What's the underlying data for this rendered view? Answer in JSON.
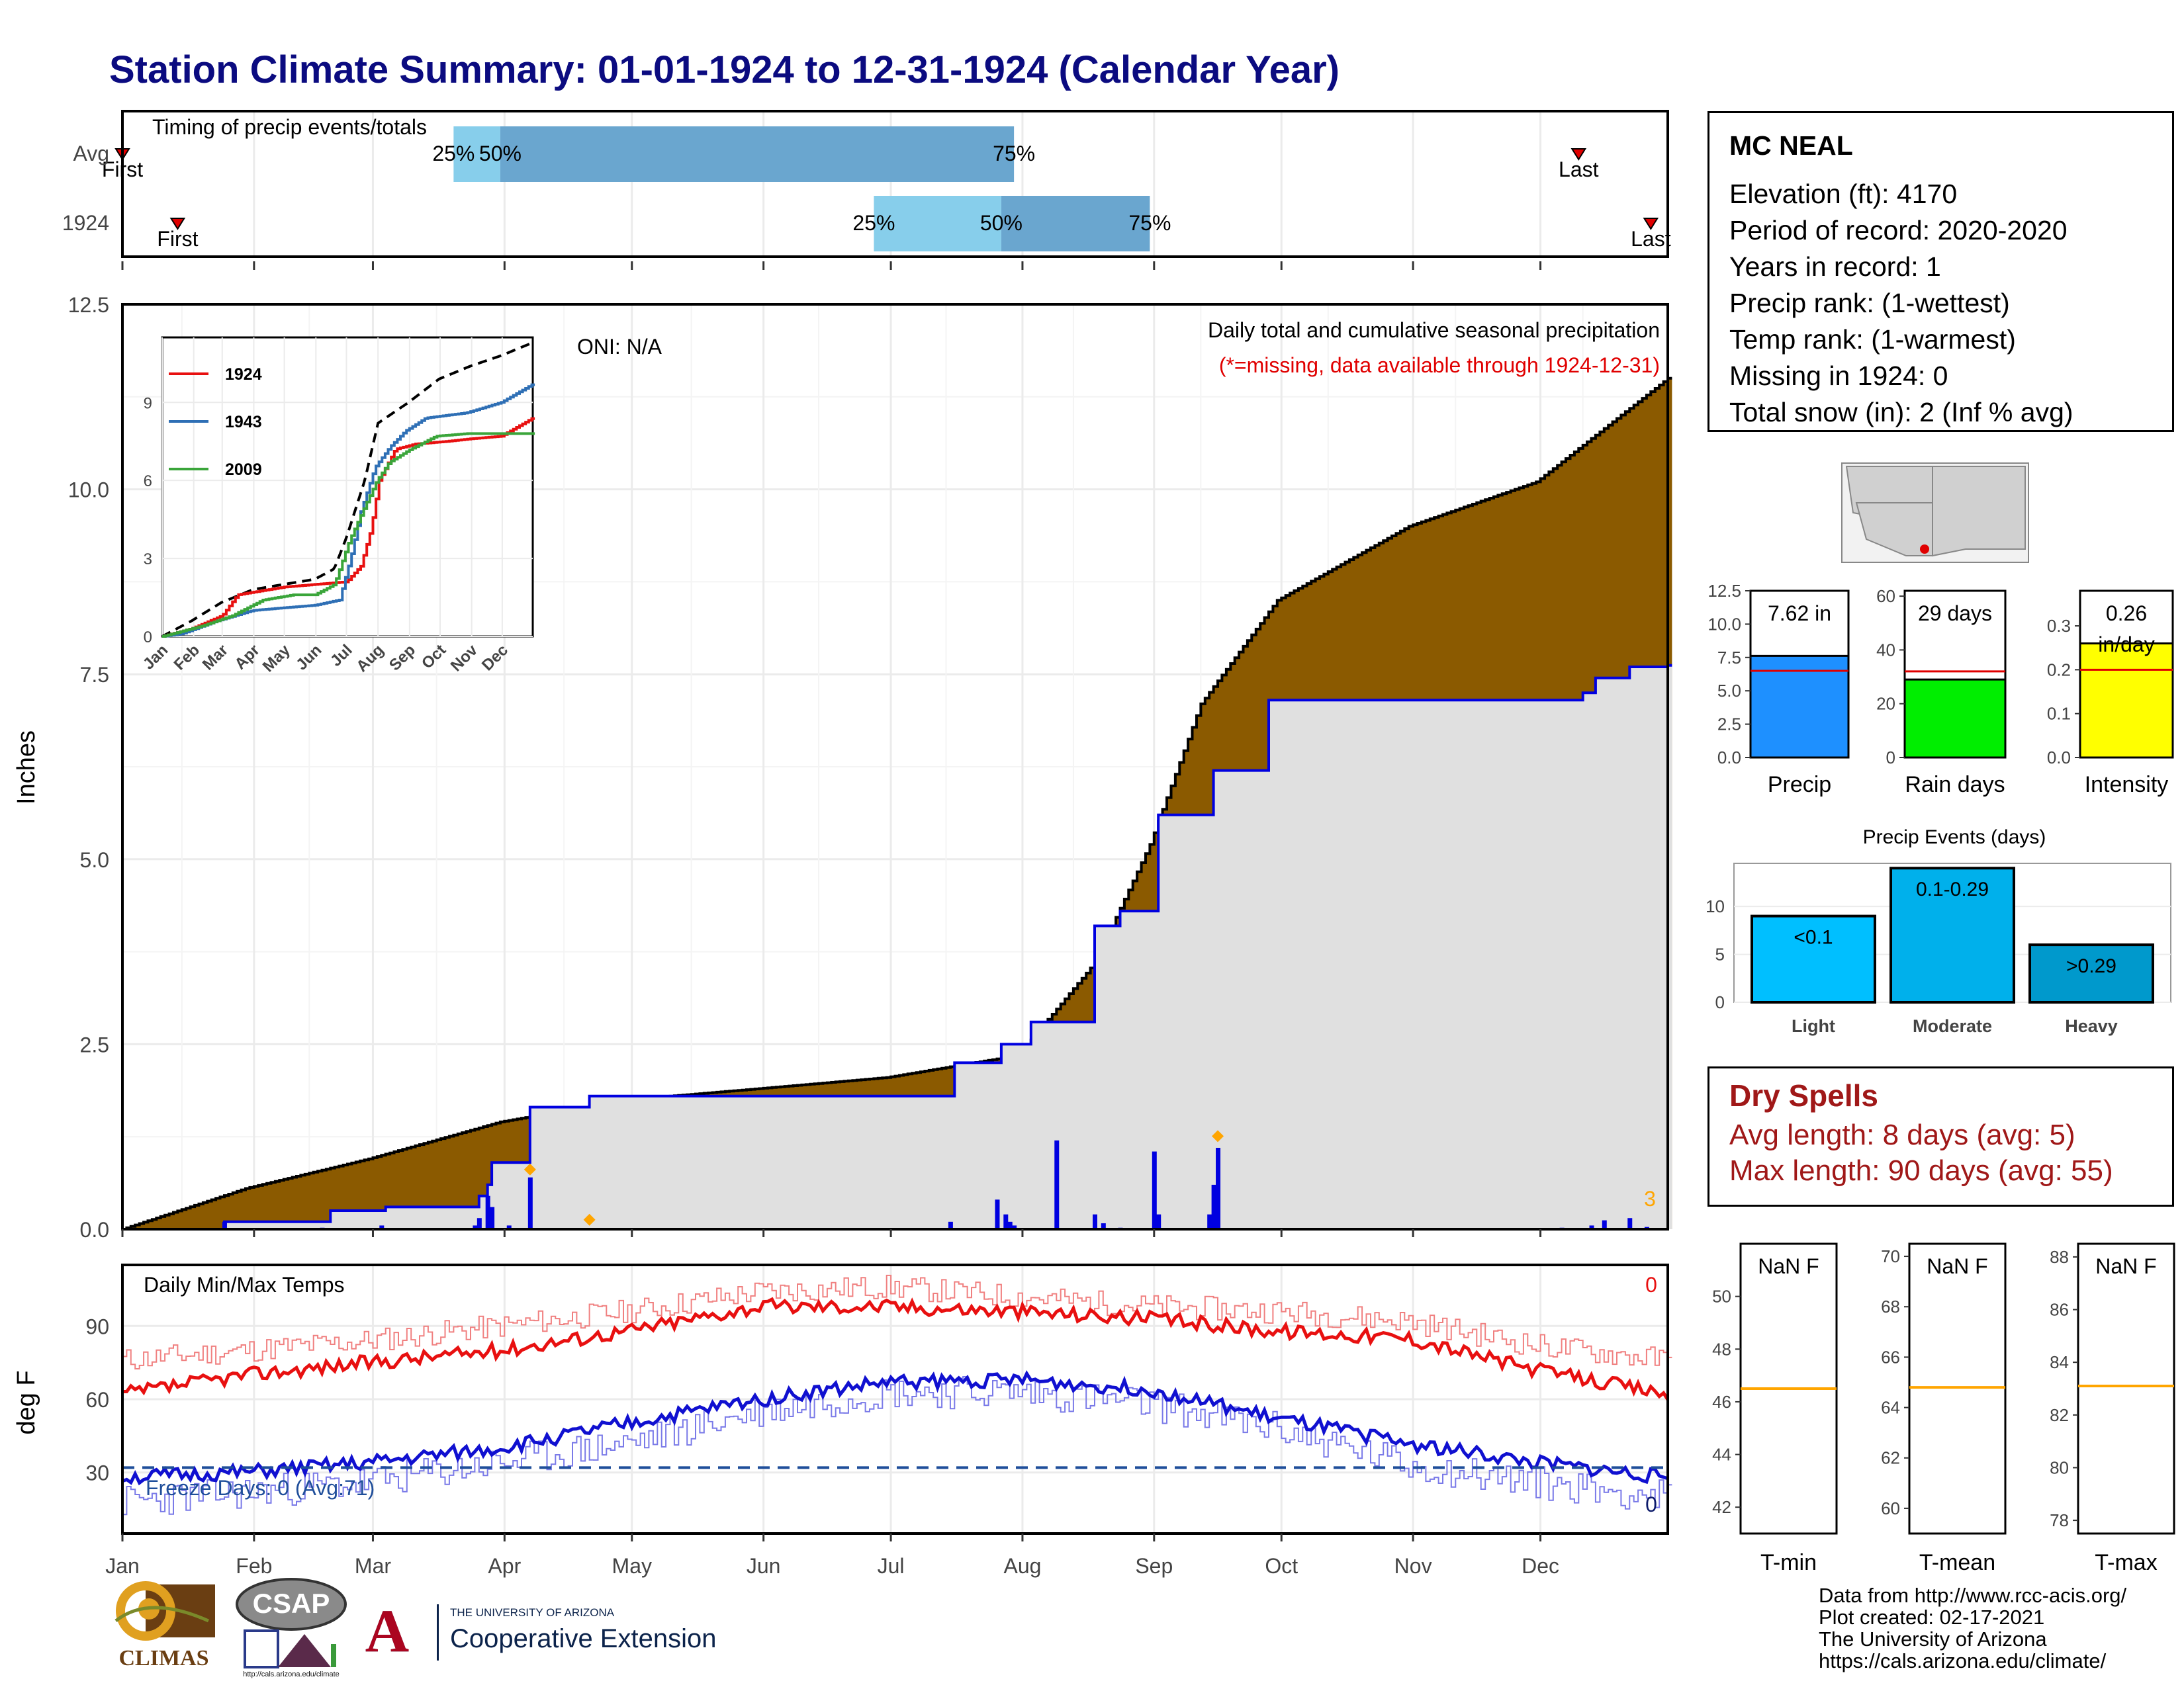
{
  "title": "Station Climate Summary: 01-01-1924 to 12-31-1924 (Calendar Year)",
  "colors": {
    "title": "#0b0b80",
    "precip_fill": "#8b5a00",
    "current_line": "#0000e0",
    "avg_area": "#e0e0e0",
    "tmax": "#e81010",
    "tmin": "#1010d0",
    "dry": "#a01818",
    "freeze": "#1f4e9a",
    "highlight": "#ffa500"
  },
  "station": {
    "name": "MC NEAL",
    "lines": [
      "Elevation (ft): 4170",
      "Period of record: 2020-2020",
      "Years in record: 1",
      "Precip rank:  (1-wettest)",
      "Temp rank:  (1-warmest)",
      "Missing in 1924: 0",
      "Total snow (in): 2 (Inf % avg)"
    ]
  },
  "dry_spells": {
    "title": "Dry Spells",
    "avg": "Avg length: 8 days (avg: 5)",
    "max": "Max length: 90 days (avg: 55)"
  },
  "credits": [
    "Data from http://www.rcc-acis.org/",
    "Plot created: 02-17-2021",
    "The University of Arizona",
    "https://cals.arizona.edu/climate/"
  ],
  "logos": {
    "climas": "CLIMAS",
    "csap": "CSAP",
    "csap_url": "http://cals.arizona.edu/climate",
    "ua_top": "THE UNIVERSITY OF ARIZONA",
    "ua_main": "Cooperative Extension",
    "ua_letter": "A"
  },
  "chart_data": [
    {
      "type": "bar",
      "name": "timing",
      "title": "Timing of precip events/totals",
      "categories": [
        "Avg",
        "1924"
      ],
      "rows": [
        {
          "label": "Avg",
          "q25": "Mar 20",
          "q50": "Mar 31",
          "q75": "Jul 30",
          "first": "Jan 1",
          "last": "Dec 10",
          "first_label": "First",
          "last_label": "Last",
          "pct_labels": [
            "25%",
            "50%",
            "75%"
          ]
        },
        {
          "label": "1924",
          "q25": "Jun 27",
          "q50": "Jul 27",
          "q75": "Aug 31",
          "first": "Jan 14",
          "last": "Dec 27",
          "first_label": "First",
          "last_label": "Last",
          "pct_labels": [
            "25%",
            "50%",
            "75%"
          ]
        }
      ]
    },
    {
      "type": "area",
      "name": "cumulative-precip",
      "title": "Daily total and cumulative seasonal precipitation",
      "subtitle": "(*=missing, data available through 1924-12-31)",
      "annotation": "ONI: N/A",
      "ylabel": "Inches",
      "ylim": [
        0,
        12.5
      ],
      "yticks": [
        "0.0",
        "2.5",
        "5.0",
        "7.5",
        "10.0",
        "12.5"
      ],
      "xticks": [
        "Jan",
        "Feb",
        "Mar",
        "Apr",
        "May",
        "Jun",
        "Jul",
        "Aug",
        "Sep",
        "Oct",
        "Nov",
        "Dec"
      ],
      "avg_cumulative": [
        [
          1,
          0
        ],
        [
          30,
          0.55
        ],
        [
          59,
          0.95
        ],
        [
          90,
          1.45
        ],
        [
          120,
          1.75
        ],
        [
          151,
          1.9
        ],
        [
          181,
          2.05
        ],
        [
          212,
          2.35
        ],
        [
          230,
          3.6
        ],
        [
          243,
          5.2
        ],
        [
          255,
          7.1
        ],
        [
          273,
          8.5
        ],
        [
          304,
          9.5
        ],
        [
          334,
          10.1
        ],
        [
          365,
          11.5
        ]
      ],
      "current_cumulative": [
        [
          1,
          0
        ],
        [
          25,
          0.1
        ],
        [
          48,
          0.1
        ],
        [
          50,
          0.25
        ],
        [
          62,
          0.25
        ],
        [
          63,
          0.3
        ],
        [
          84,
          0.3
        ],
        [
          85,
          0.45
        ],
        [
          87,
          0.6
        ],
        [
          88,
          0.9
        ],
        [
          96,
          0.9
        ],
        [
          97,
          1.65
        ],
        [
          110,
          1.65
        ],
        [
          111,
          1.8
        ],
        [
          196,
          1.8
        ],
        [
          197,
          2.25
        ],
        [
          207,
          2.25
        ],
        [
          208,
          2.5
        ],
        [
          214,
          2.5
        ],
        [
          215,
          2.8
        ],
        [
          229,
          2.8
        ],
        [
          230,
          4.1
        ],
        [
          235,
          4.1
        ],
        [
          236,
          4.3
        ],
        [
          244,
          4.3
        ],
        [
          245,
          5.6
        ],
        [
          257,
          5.6
        ],
        [
          258,
          6.2
        ],
        [
          270,
          6.2
        ],
        [
          271,
          6.2
        ],
        [
          271,
          7.15
        ],
        [
          340,
          7.15
        ],
        [
          345,
          7.25
        ],
        [
          348,
          7.45
        ],
        [
          355,
          7.45
        ],
        [
          356,
          7.6
        ],
        [
          365,
          7.62
        ]
      ],
      "daily_bars": [
        [
          25,
          0.1
        ],
        [
          48,
          0.02
        ],
        [
          62,
          0.05
        ],
        [
          84,
          0.05
        ],
        [
          85,
          0.15
        ],
        [
          87,
          0.45
        ],
        [
          88,
          0.3
        ],
        [
          92,
          0.05
        ],
        [
          97,
          0.7
        ],
        [
          196,
          0.1
        ],
        [
          207,
          0.4
        ],
        [
          209,
          0.2
        ],
        [
          210,
          0.1
        ],
        [
          211,
          0.05
        ],
        [
          221,
          1.2
        ],
        [
          230,
          0.2
        ],
        [
          232,
          0.08
        ],
        [
          236,
          0.02
        ],
        [
          244,
          1.05
        ],
        [
          245,
          0.2
        ],
        [
          257,
          0.2
        ],
        [
          258,
          0.6
        ],
        [
          259,
          1.1
        ],
        [
          340,
          0.02
        ],
        [
          347,
          0.05
        ],
        [
          350,
          0.12
        ],
        [
          356,
          0.15
        ],
        [
          360,
          0.03
        ]
      ],
      "highlight_markers": [
        [
          97,
          0.7
        ],
        [
          111,
          0.02
        ],
        [
          259,
          1.15
        ]
      ],
      "missing_count": "3"
    },
    {
      "type": "line",
      "name": "inset-cumulative",
      "series": [
        {
          "name": "1924",
          "color": "#e81010"
        },
        {
          "name": "1943",
          "color": "#2e6fb5"
        },
        {
          "name": "2009",
          "color": "#3aa53a"
        }
      ],
      "yticks": [
        "0",
        "3",
        "6",
        "9"
      ],
      "xticks": [
        "Jan",
        "Feb",
        "Mar",
        "Apr",
        "May",
        "Jun",
        "Jul",
        "Aug",
        "Sep",
        "Oct",
        "Nov",
        "Dec"
      ],
      "ylim": [
        0,
        11.5
      ]
    },
    {
      "type": "bar",
      "name": "precip-summary",
      "panels": [
        {
          "label": "Precip",
          "value": 7.62,
          "avg": 6.5,
          "ylim": [
            0,
            12.5
          ],
          "yticks": [
            "0.0",
            "2.5",
            "5.0",
            "7.5",
            "10.0",
            "12.5"
          ],
          "value_label": "7.62 in",
          "color": "#1e90ff"
        },
        {
          "label": "Rain days",
          "value": 29,
          "avg": 32,
          "ylim": [
            0,
            62
          ],
          "yticks": [
            "0",
            "20",
            "40",
            "60"
          ],
          "value_label": "29 days",
          "color": "#00ee00"
        },
        {
          "label": "Intensity",
          "value": 0.26,
          "avg": 0.2,
          "ylim": [
            0,
            0.38
          ],
          "yticks": [
            "0.0",
            "0.1",
            "0.2",
            "0.3"
          ],
          "value_label": "0.26 in/day",
          "color": "#ffff00"
        }
      ]
    },
    {
      "type": "bar",
      "name": "precip-events",
      "title": "Precip Events (days)",
      "categories": [
        "Light",
        "Moderate",
        "Heavy"
      ],
      "values": [
        9,
        14,
        6
      ],
      "bar_labels": [
        "<0.1",
        "0.1-0.29",
        ">0.29"
      ],
      "yticks": [
        "0",
        "5",
        "10"
      ],
      "ylim": [
        0,
        14.5
      ]
    },
    {
      "type": "line",
      "name": "daily-temps",
      "title": "Daily Min/Max Temps",
      "ylabel": "deg F",
      "ylim": [
        5,
        115
      ],
      "yticks": [
        "30",
        "60",
        "90"
      ],
      "xticks": [
        "Jan",
        "Feb",
        "Mar",
        "Apr",
        "May",
        "Jun",
        "Jul",
        "Aug",
        "Sep",
        "Oct",
        "Nov",
        "Dec"
      ],
      "freeze_line": 32,
      "freeze_label": "Freeze Days: 0 (Avg:71)",
      "tmax_corner_label": "0",
      "tmin_corner_label": "0",
      "tmax_year": [
        [
          1,
          62
        ],
        [
          30,
          70
        ],
        [
          59,
          75
        ],
        [
          90,
          80
        ],
        [
          120,
          88
        ],
        [
          151,
          98
        ],
        [
          181,
          98
        ],
        [
          212,
          96
        ],
        [
          243,
          93
        ],
        [
          273,
          88
        ],
        [
          304,
          85
        ],
        [
          334,
          72
        ],
        [
          365,
          62
        ]
      ],
      "tmax_avg": [
        [
          1,
          76
        ],
        [
          30,
          80
        ],
        [
          59,
          84
        ],
        [
          90,
          90
        ],
        [
          120,
          96
        ],
        [
          151,
          104
        ],
        [
          181,
          106
        ],
        [
          212,
          102
        ],
        [
          243,
          98
        ],
        [
          273,
          96
        ],
        [
          304,
          92
        ],
        [
          334,
          82
        ],
        [
          365,
          76
        ]
      ],
      "tmin_year": [
        [
          1,
          28
        ],
        [
          30,
          30
        ],
        [
          59,
          34
        ],
        [
          90,
          40
        ],
        [
          120,
          50
        ],
        [
          151,
          60
        ],
        [
          181,
          67
        ],
        [
          212,
          68
        ],
        [
          243,
          64
        ],
        [
          273,
          52
        ],
        [
          304,
          42
        ],
        [
          334,
          34
        ],
        [
          365,
          28
        ]
      ],
      "tmin_avg": [
        [
          1,
          18
        ],
        [
          30,
          22
        ],
        [
          59,
          26
        ],
        [
          90,
          34
        ],
        [
          120,
          42
        ],
        [
          151,
          55
        ],
        [
          181,
          63
        ],
        [
          212,
          63
        ],
        [
          243,
          58
        ],
        [
          273,
          48
        ],
        [
          304,
          33
        ],
        [
          334,
          26
        ],
        [
          365,
          20
        ]
      ]
    },
    {
      "type": "bar",
      "name": "temp-summary",
      "panels": [
        {
          "label": "T-min",
          "value_label": "NaN F",
          "avg": 46.5,
          "ylim": [
            41,
            52
          ],
          "yticks": [
            "42",
            "44",
            "46",
            "48",
            "50"
          ]
        },
        {
          "label": "T-mean",
          "value_label": "NaN F",
          "avg": 64.8,
          "ylim": [
            59,
            70.5
          ],
          "yticks": [
            "60",
            "62",
            "64",
            "66",
            "68",
            "70"
          ]
        },
        {
          "label": "T-max",
          "value_label": "NaN F",
          "avg": 83.1,
          "ylim": [
            77.5,
            88.5
          ],
          "yticks": [
            "78",
            "80",
            "82",
            "84",
            "86",
            "88"
          ]
        }
      ]
    }
  ]
}
